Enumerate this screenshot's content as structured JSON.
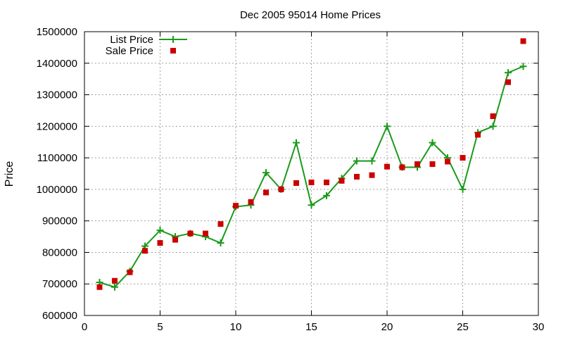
{
  "chart_data": {
    "type": "line",
    "title": "Dec 2005 95014 Home Prices",
    "xlabel": "",
    "ylabel": "Price",
    "xlim": [
      0,
      30
    ],
    "ylim": [
      600000,
      1500000
    ],
    "x_ticks": [
      0,
      5,
      10,
      15,
      20,
      25,
      30
    ],
    "y_ticks": [
      600000,
      700000,
      800000,
      900000,
      1000000,
      1100000,
      1200000,
      1300000,
      1400000,
      1500000
    ],
    "grid": true,
    "legend_position": "top-left",
    "series": [
      {
        "name": "List Price",
        "style": "line-cross",
        "color": "#1a9b1a",
        "x": [
          1,
          2,
          3,
          4,
          5,
          6,
          7,
          8,
          9,
          10,
          11,
          12,
          13,
          14,
          15,
          16,
          17,
          18,
          19,
          20,
          21,
          22,
          23,
          24,
          25,
          26,
          27,
          28,
          29
        ],
        "values": [
          705000,
          690000,
          740000,
          820000,
          870000,
          850000,
          860000,
          850000,
          830000,
          945000,
          950000,
          1053000,
          1000000,
          1148000,
          950000,
          980000,
          1035000,
          1090000,
          1090000,
          1200000,
          1070000,
          1070000,
          1148000,
          1100000,
          1000000,
          1180000,
          1200000,
          1370000,
          1390000
        ]
      },
      {
        "name": "Sale Price",
        "style": "square",
        "color": "#cc0000",
        "x": [
          1,
          2,
          3,
          4,
          5,
          6,
          7,
          8,
          9,
          10,
          11,
          12,
          13,
          14,
          15,
          16,
          17,
          18,
          19,
          20,
          21,
          22,
          23,
          24,
          25,
          26,
          27,
          28,
          29
        ],
        "values": [
          690000,
          710000,
          737000,
          805000,
          830000,
          840000,
          860000,
          860000,
          890000,
          948000,
          960000,
          990000,
          1000000,
          1020000,
          1022000,
          1022000,
          1027000,
          1040000,
          1045000,
          1072000,
          1070000,
          1080000,
          1080000,
          1088000,
          1100000,
          1173000,
          1232000,
          1340000,
          1470000
        ]
      }
    ]
  }
}
